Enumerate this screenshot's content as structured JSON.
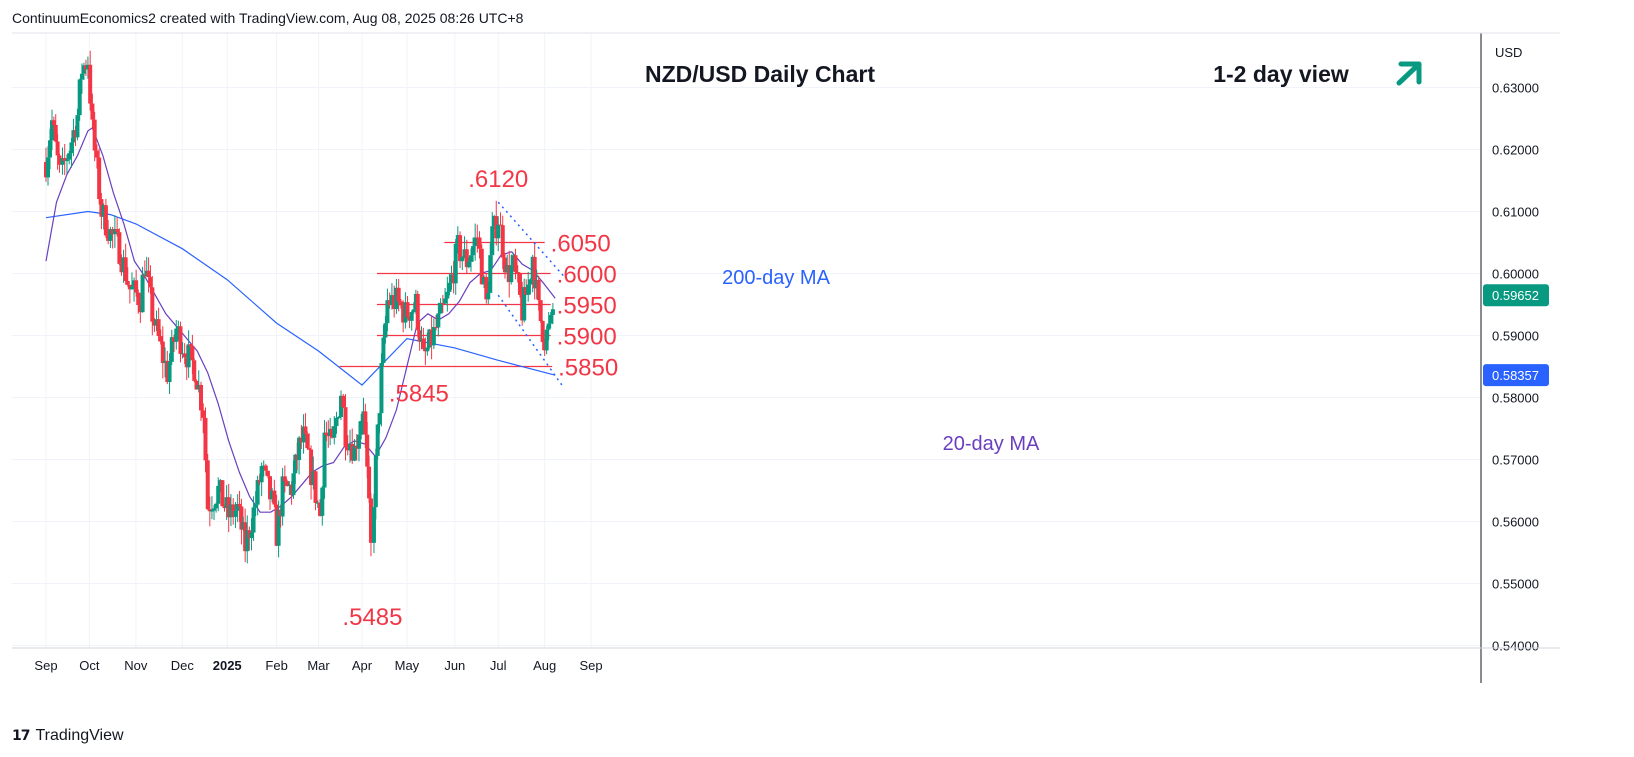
{
  "header": {
    "credit": "ContinuumEconomics2 created with TradingView.com, Aug 08, 2025 08:26 UTC+8"
  },
  "footer": {
    "brand": "TradingView"
  },
  "colors": {
    "up": "#089981",
    "down": "#f23645",
    "ma20": "#6a3fbf",
    "ma200": "#2962ff",
    "level": "#f23645",
    "channel": "#2962ff",
    "arrow": "#089981"
  },
  "chart_data": {
    "type": "candlestick",
    "title": "NZD/USD Daily Chart",
    "subtitle": "1-2 day view",
    "currency": "USD",
    "ylim": [
      0.54,
      0.6335
    ],
    "y_ticks": [
      "0.63000",
      "0.62000",
      "0.61000",
      "0.60000",
      "0.59000",
      "0.58000",
      "0.57000",
      "0.56000",
      "0.55000",
      "0.54000"
    ],
    "y_tick_values": [
      0.63,
      0.62,
      0.61,
      0.6,
      0.59,
      0.58,
      0.57,
      0.56,
      0.55,
      0.54
    ],
    "x_ticks": [
      {
        "label": "Sep",
        "date": "2024-09-02"
      },
      {
        "label": "Oct",
        "date": "2024-10-01"
      },
      {
        "label": "Nov",
        "date": "2024-11-01"
      },
      {
        "label": "Dec",
        "date": "2024-12-02"
      },
      {
        "label": "2025",
        "date": "2025-01-01",
        "bold": true
      },
      {
        "label": "Feb",
        "date": "2025-02-03"
      },
      {
        "label": "Mar",
        "date": "2025-03-03"
      },
      {
        "label": "Apr",
        "date": "2025-04-01"
      },
      {
        "label": "May",
        "date": "2025-05-01"
      },
      {
        "label": "Jun",
        "date": "2025-06-02"
      },
      {
        "label": "Jul",
        "date": "2025-07-01"
      },
      {
        "label": "Aug",
        "date": "2025-08-01"
      },
      {
        "label": "Sep",
        "date": "2025-09-01"
      }
    ],
    "last_price": "0.59652",
    "ma200_value": "0.58357",
    "ma20_label": "20-day MA",
    "ma200_label": "200-day MA",
    "levels": [
      {
        "label": ".6050",
        "value": 0.605,
        "from": "2025-05-26",
        "to": "2025-08-01"
      },
      {
        "label": ".6000",
        "value": 0.6,
        "from": "2025-04-11",
        "to": "2025-08-05"
      },
      {
        "label": ".5950",
        "value": 0.595,
        "from": "2025-04-11",
        "to": "2025-08-05"
      },
      {
        "label": ".5900",
        "value": 0.59,
        "from": "2025-04-11",
        "to": "2025-08-05"
      },
      {
        "label": ".5850",
        "value": 0.585,
        "from": "2025-03-17",
        "to": "2025-08-06"
      }
    ],
    "point_labels": [
      {
        "label": ".6120",
        "date": "2025-07-01",
        "value": 0.612,
        "pos": "above"
      },
      {
        "label": ".5845",
        "date": "2025-05-09",
        "value": 0.5845,
        "pos": "below"
      },
      {
        "label": ".5485",
        "date": "2025-04-08",
        "value": 0.5485,
        "pos": "below"
      }
    ],
    "channel": [
      {
        "from": {
          "date": "2025-07-01",
          "value": 0.6115
        },
        "to": {
          "date": "2025-08-14",
          "value": 0.5995
        }
      },
      {
        "from": {
          "date": "2025-07-01",
          "value": 0.5965
        },
        "to": {
          "date": "2025-08-14",
          "value": 0.5815
        }
      }
    ],
    "closes": [
      {
        "date": "2024-09-02",
        "close": 0.618
      },
      {
        "date": "2024-09-06",
        "close": 0.6245
      },
      {
        "date": "2024-09-11",
        "close": 0.616
      },
      {
        "date": "2024-09-13",
        "close": 0.6165
      },
      {
        "date": "2024-09-19",
        "close": 0.6215
      },
      {
        "date": "2024-09-23",
        "close": 0.6255
      },
      {
        "date": "2024-09-26",
        "close": 0.633
      },
      {
        "date": "2024-09-30",
        "close": 0.6345
      },
      {
        "date": "2024-10-03",
        "close": 0.623
      },
      {
        "date": "2024-10-09",
        "close": 0.61
      },
      {
        "date": "2024-10-15",
        "close": 0.6065
      },
      {
        "date": "2024-10-21",
        "close": 0.604
      },
      {
        "date": "2024-10-28",
        "close": 0.5975
      },
      {
        "date": "2024-11-04",
        "close": 0.596
      },
      {
        "date": "2024-11-07",
        "close": 0.6015
      },
      {
        "date": "2024-11-12",
        "close": 0.5935
      },
      {
        "date": "2024-11-19",
        "close": 0.5865
      },
      {
        "date": "2024-11-22",
        "close": 0.584
      },
      {
        "date": "2024-11-28",
        "close": 0.591
      },
      {
        "date": "2024-12-05",
        "close": 0.587
      },
      {
        "date": "2024-12-10",
        "close": 0.585
      },
      {
        "date": "2024-12-16",
        "close": 0.578
      },
      {
        "date": "2024-12-19",
        "close": 0.5625
      },
      {
        "date": "2024-12-26",
        "close": 0.565
      },
      {
        "date": "2025-01-02",
        "close": 0.561
      },
      {
        "date": "2025-01-08",
        "close": 0.562
      },
      {
        "date": "2025-01-13",
        "close": 0.556
      },
      {
        "date": "2025-01-20",
        "close": 0.563
      },
      {
        "date": "2025-01-24",
        "close": 0.5685
      },
      {
        "date": "2025-01-31",
        "close": 0.563
      },
      {
        "date": "2025-02-03",
        "close": 0.558
      },
      {
        "date": "2025-02-07",
        "close": 0.565
      },
      {
        "date": "2025-02-13",
        "close": 0.5655
      },
      {
        "date": "2025-02-18",
        "close": 0.572
      },
      {
        "date": "2025-02-21",
        "close": 0.5735
      },
      {
        "date": "2025-02-26",
        "close": 0.568
      },
      {
        "date": "2025-03-04",
        "close": 0.561
      },
      {
        "date": "2025-03-07",
        "close": 0.5745
      },
      {
        "date": "2025-03-12",
        "close": 0.572
      },
      {
        "date": "2025-03-18",
        "close": 0.581
      },
      {
        "date": "2025-03-21",
        "close": 0.5745
      },
      {
        "date": "2025-03-27",
        "close": 0.5715
      },
      {
        "date": "2025-04-02",
        "close": 0.579
      },
      {
        "date": "2025-04-07",
        "close": 0.5555
      },
      {
        "date": "2025-04-09",
        "close": 0.564
      },
      {
        "date": "2025-04-14",
        "close": 0.584
      },
      {
        "date": "2025-04-18",
        "close": 0.5955
      },
      {
        "date": "2025-04-24",
        "close": 0.5955
      },
      {
        "date": "2025-04-30",
        "close": 0.5935
      },
      {
        "date": "2025-05-07",
        "close": 0.595
      },
      {
        "date": "2025-05-12",
        "close": 0.586
      },
      {
        "date": "2025-05-16",
        "close": 0.5885
      },
      {
        "date": "2025-05-22",
        "close": 0.592
      },
      {
        "date": "2025-05-28",
        "close": 0.596
      },
      {
        "date": "2025-06-04",
        "close": 0.604
      },
      {
        "date": "2025-06-10",
        "close": 0.602
      },
      {
        "date": "2025-06-17",
        "close": 0.606
      },
      {
        "date": "2025-06-23",
        "close": 0.595
      },
      {
        "date": "2025-06-27",
        "close": 0.606
      },
      {
        "date": "2025-07-01",
        "close": 0.609
      },
      {
        "date": "2025-07-07",
        "close": 0.6
      },
      {
        "date": "2025-07-11",
        "close": 0.601
      },
      {
        "date": "2025-07-17",
        "close": 0.594
      },
      {
        "date": "2025-07-21",
        "close": 0.598
      },
      {
        "date": "2025-07-24",
        "close": 0.603
      },
      {
        "date": "2025-07-28",
        "close": 0.594
      },
      {
        "date": "2025-08-01",
        "close": 0.5895
      },
      {
        "date": "2025-08-05",
        "close": 0.5915
      },
      {
        "date": "2025-08-08",
        "close": 0.5965
      }
    ],
    "ma20": [
      {
        "date": "2024-09-02",
        "value": 0.602
      },
      {
        "date": "2024-09-09",
        "value": 0.6115
      },
      {
        "date": "2024-09-16",
        "value": 0.616
      },
      {
        "date": "2024-09-23",
        "value": 0.619
      },
      {
        "date": "2024-09-30",
        "value": 0.623
      },
      {
        "date": "2024-10-03",
        "value": 0.6235
      },
      {
        "date": "2024-10-10",
        "value": 0.619
      },
      {
        "date": "2024-10-17",
        "value": 0.613
      },
      {
        "date": "2024-10-24",
        "value": 0.608
      },
      {
        "date": "2024-10-31",
        "value": 0.602
      },
      {
        "date": "2024-11-07",
        "value": 0.5995
      },
      {
        "date": "2024-11-14",
        "value": 0.5965
      },
      {
        "date": "2024-11-21",
        "value": 0.5935
      },
      {
        "date": "2024-11-28",
        "value": 0.5915
      },
      {
        "date": "2024-12-05",
        "value": 0.5895
      },
      {
        "date": "2024-12-12",
        "value": 0.5875
      },
      {
        "date": "2024-12-19",
        "value": 0.584
      },
      {
        "date": "2024-12-26",
        "value": 0.579
      },
      {
        "date": "2025-01-02",
        "value": 0.573
      },
      {
        "date": "2025-01-09",
        "value": 0.568
      },
      {
        "date": "2025-01-16",
        "value": 0.564
      },
      {
        "date": "2025-01-23",
        "value": 0.5615
      },
      {
        "date": "2025-01-30",
        "value": 0.5615
      },
      {
        "date": "2025-02-06",
        "value": 0.5625
      },
      {
        "date": "2025-02-13",
        "value": 0.564
      },
      {
        "date": "2025-02-20",
        "value": 0.566
      },
      {
        "date": "2025-02-27",
        "value": 0.568
      },
      {
        "date": "2025-03-06",
        "value": 0.569
      },
      {
        "date": "2025-03-13",
        "value": 0.5695
      },
      {
        "date": "2025-03-20",
        "value": 0.572
      },
      {
        "date": "2025-03-27",
        "value": 0.573
      },
      {
        "date": "2025-04-03",
        "value": 0.5725
      },
      {
        "date": "2025-04-10",
        "value": 0.5705
      },
      {
        "date": "2025-04-17",
        "value": 0.5735
      },
      {
        "date": "2025-04-24",
        "value": 0.578
      },
      {
        "date": "2025-05-01",
        "value": 0.585
      },
      {
        "date": "2025-05-08",
        "value": 0.592
      },
      {
        "date": "2025-05-15",
        "value": 0.5935
      },
      {
        "date": "2025-05-22",
        "value": 0.5925
      },
      {
        "date": "2025-05-29",
        "value": 0.5935
      },
      {
        "date": "2025-06-05",
        "value": 0.5955
      },
      {
        "date": "2025-06-12",
        "value": 0.5985
      },
      {
        "date": "2025-06-19",
        "value": 0.6
      },
      {
        "date": "2025-06-26",
        "value": 0.6005
      },
      {
        "date": "2025-07-03",
        "value": 0.603
      },
      {
        "date": "2025-07-10",
        "value": 0.6035
      },
      {
        "date": "2025-07-17",
        "value": 0.6015
      },
      {
        "date": "2025-07-24",
        "value": 0.6005
      },
      {
        "date": "2025-07-31",
        "value": 0.5985
      },
      {
        "date": "2025-08-08",
        "value": 0.596
      }
    ],
    "ma200": [
      {
        "date": "2024-09-02",
        "value": 0.609
      },
      {
        "date": "2024-09-30",
        "value": 0.61
      },
      {
        "date": "2024-10-15",
        "value": 0.6095
      },
      {
        "date": "2024-11-01",
        "value": 0.608
      },
      {
        "date": "2024-12-02",
        "value": 0.604
      },
      {
        "date": "2025-01-01",
        "value": 0.599
      },
      {
        "date": "2025-02-03",
        "value": 0.592
      },
      {
        "date": "2025-03-03",
        "value": 0.5875
      },
      {
        "date": "2025-04-01",
        "value": 0.582
      },
      {
        "date": "2025-05-01",
        "value": 0.5895
      },
      {
        "date": "2025-06-02",
        "value": 0.588
      },
      {
        "date": "2025-07-01",
        "value": 0.586
      },
      {
        "date": "2025-08-08",
        "value": 0.5836
      }
    ]
  }
}
